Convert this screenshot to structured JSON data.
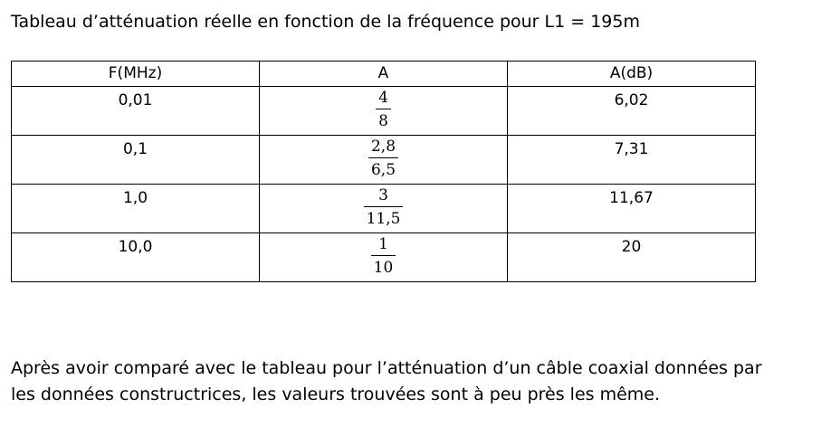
{
  "title": "Tableau d’atténuation réelle en fonction de la fréquence pour L1 = 195m",
  "table": {
    "headers": [
      "F(MHz)",
      "A",
      "A(dB)"
    ],
    "rows": [
      {
        "f": "0,01",
        "a_num": "4",
        "a_den": "8",
        "a_db": "6,02"
      },
      {
        "f": "0,1",
        "a_num": "2,8",
        "a_den": "6,5",
        "a_db": "7,31"
      },
      {
        "f": "1,0",
        "a_num": "3",
        "a_den": "11,5",
        "a_db": "11,67"
      },
      {
        "f": "10,0",
        "a_num": "1",
        "a_den": "10",
        "a_db": "20"
      }
    ]
  },
  "conclusion": "Après avoir comparé avec le tableau pour l’atténuation d’un câble coaxial données par les données constructrices, les valeurs trouvées sont à peu près les même."
}
